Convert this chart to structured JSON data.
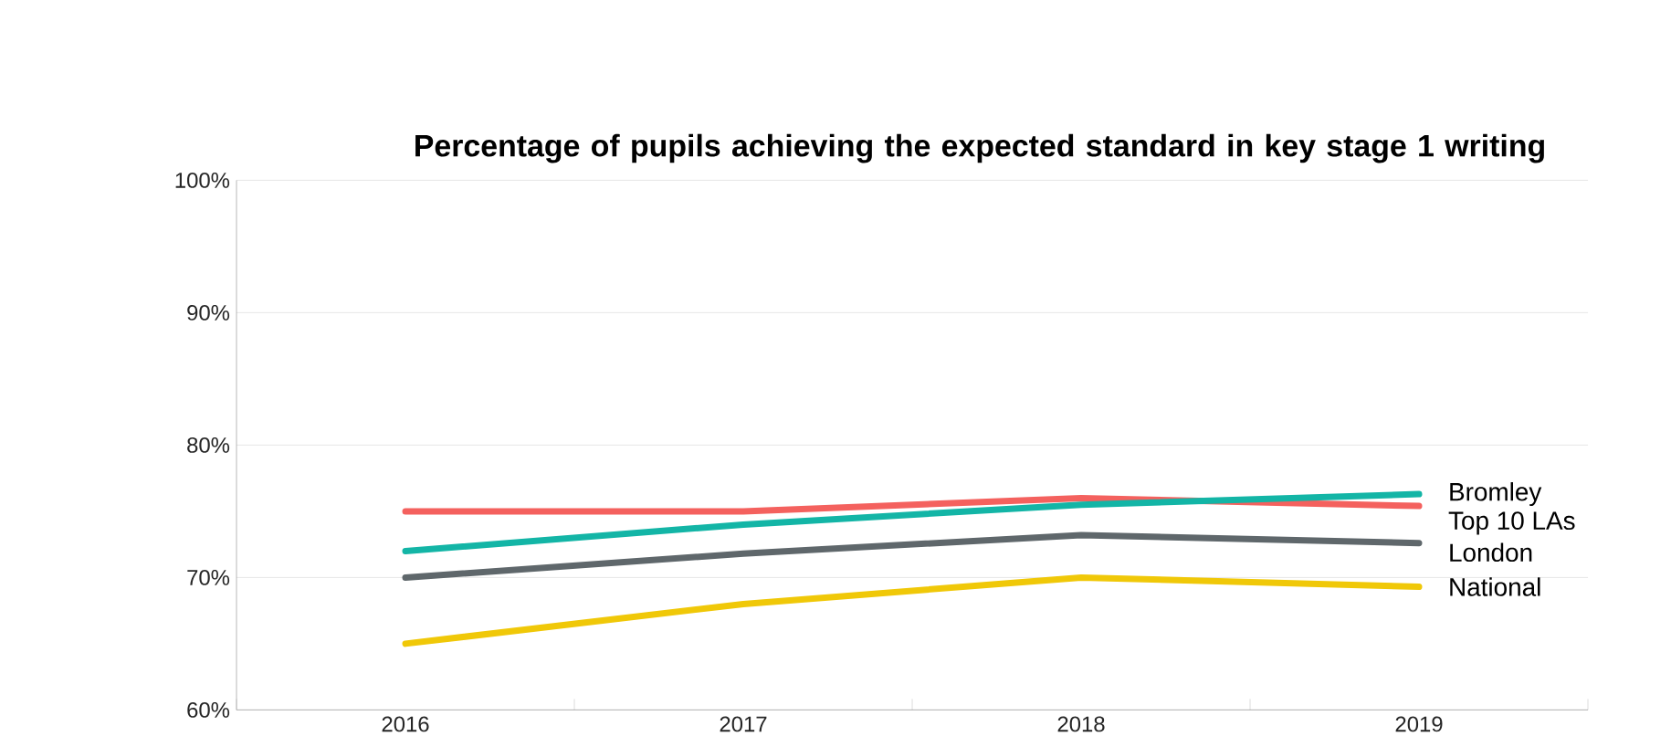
{
  "chart_data": {
    "type": "line",
    "title": "Percentage of pupils achieving the expected standard in key stage 1 writing",
    "categories": [
      "2016",
      "2017",
      "2018",
      "2019"
    ],
    "series": [
      {
        "name": "Top 10 LAs",
        "color": "#f4615e",
        "values": [
          75,
          75,
          76,
          75.4
        ]
      },
      {
        "name": "Bromley",
        "color": "#13b5a6",
        "values": [
          72,
          74,
          75.5,
          76.3
        ]
      },
      {
        "name": "London",
        "color": "#5f676b",
        "values": [
          70,
          71.8,
          73.2,
          72.6
        ]
      },
      {
        "name": "National",
        "color": "#f0c808",
        "values": [
          65,
          68,
          70,
          69.3
        ]
      }
    ],
    "ylim": [
      60,
      100
    ],
    "yticks": [
      {
        "value": 60,
        "label": "60%"
      },
      {
        "value": 70,
        "label": "70%"
      },
      {
        "value": 80,
        "label": "80%"
      },
      {
        "value": 90,
        "label": "90%"
      },
      {
        "value": 100,
        "label": "100%"
      }
    ],
    "grid": "y",
    "legend": false,
    "marker": "none",
    "line_style": "solid"
  }
}
